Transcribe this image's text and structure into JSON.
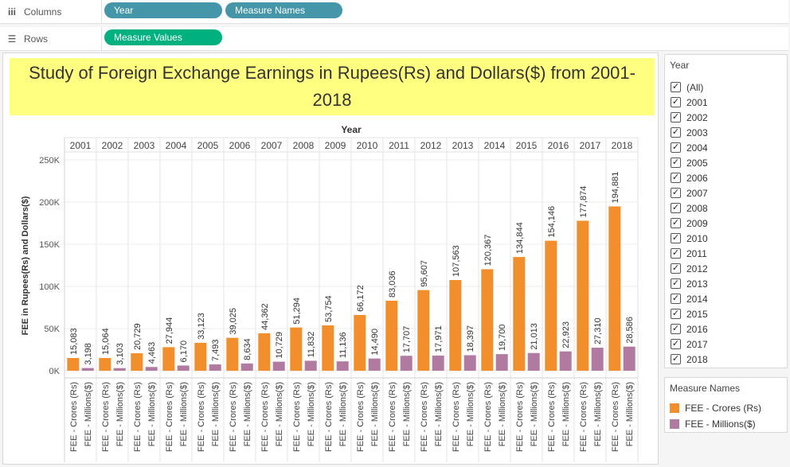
{
  "shelves": {
    "columns": {
      "label": "Columns",
      "icon": "columns-icon",
      "pills": [
        "Year",
        "Measure Names"
      ]
    },
    "rows": {
      "label": "Rows",
      "icon": "rows-icon",
      "pills": [
        "Measure Values"
      ]
    }
  },
  "colors": {
    "pill_dimension": "#4596a9",
    "pill_measure": "#00b180",
    "title_bg": "#ffff80",
    "crores": "#f28e2b",
    "millions": "#b07aa1"
  },
  "filter": {
    "title": "Year",
    "items": [
      "(All)",
      "2001",
      "2002",
      "2003",
      "2004",
      "2005",
      "2006",
      "2007",
      "2008",
      "2009",
      "2010",
      "2011",
      "2012",
      "2013",
      "2014",
      "2015",
      "2016",
      "2017",
      "2018"
    ],
    "checked": true
  },
  "legend": {
    "title": "Measure Names",
    "items": [
      {
        "label": "FEE - Crores (Rs)",
        "color": "#f28e2b"
      },
      {
        "label": "FEE - Millions($)",
        "color": "#b07aa1"
      }
    ]
  },
  "chart_data": {
    "type": "bar",
    "title": "Study of Foreign Exchange Earnings in  Rupees(Rs) and Dollars($) from 2001-2018",
    "column_header": "Year",
    "ylabel": "FEE in Rupees(Rs) and Dollars($)",
    "ylim": [
      0,
      260000
    ],
    "yticks": [
      0,
      50000,
      100000,
      150000,
      200000,
      250000
    ],
    "ytick_labels": [
      "0K",
      "50K",
      "100K",
      "150K",
      "200K",
      "250K"
    ],
    "categories": [
      "2001",
      "2002",
      "2003",
      "2004",
      "2005",
      "2006",
      "2007",
      "2008",
      "2009",
      "2010",
      "2011",
      "2012",
      "2013",
      "2014",
      "2015",
      "2016",
      "2017",
      "2018"
    ],
    "series": [
      {
        "name": "FEE - Crores (Rs)",
        "values": [
          15083,
          15064,
          20729,
          27944,
          33123,
          39025,
          44362,
          51294,
          53754,
          66172,
          83036,
          95607,
          107563,
          120367,
          134844,
          154146,
          177874,
          194881
        ],
        "labels": [
          "15,083",
          "15,064",
          "20,729",
          "27,944",
          "33,123",
          "39,025",
          "44,362",
          "51,294",
          "53,754",
          "66,172",
          "83,036",
          "95,607",
          "107,563",
          "120,367",
          "134,844",
          "154,146",
          "177,874",
          "194,881"
        ]
      },
      {
        "name": "FEE - Millions($)",
        "values": [
          3198,
          3103,
          4463,
          6170,
          7493,
          8634,
          10729,
          11832,
          11136,
          14490,
          17707,
          17971,
          18397,
          19700,
          21013,
          22923,
          27310,
          28586
        ],
        "labels": [
          "3,198",
          "3,103",
          "4,463",
          "6,170",
          "7,493",
          "8,634",
          "10,729",
          "11,832",
          "11,136",
          "14,490",
          "17,707",
          "17,971",
          "18,397",
          "19,700",
          "21,013",
          "22,923",
          "27,310",
          "28,586"
        ]
      }
    ],
    "grid": true,
    "legend_position": "right"
  }
}
